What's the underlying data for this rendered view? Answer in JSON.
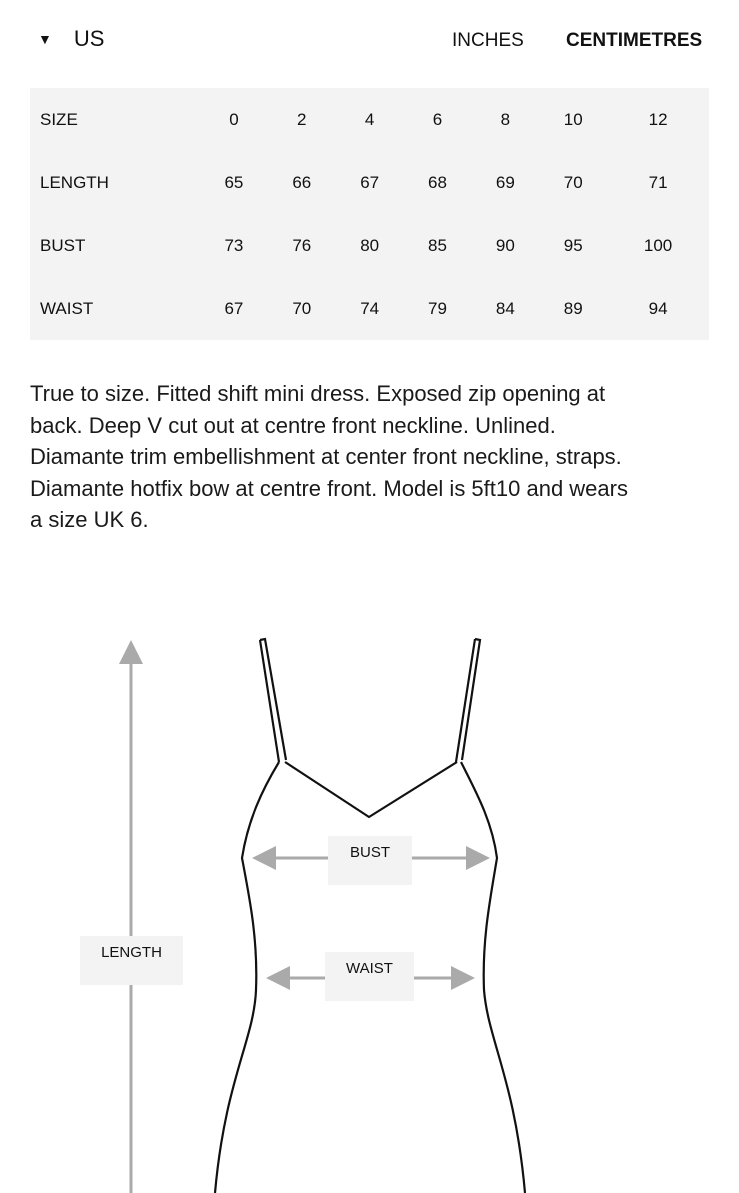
{
  "header": {
    "region": "US",
    "region_icon": "triangle-down-icon",
    "units": [
      "INCHES",
      "CENTIMETRES"
    ],
    "selected_unit": "CENTIMETRES"
  },
  "table": {
    "rows": [
      {
        "label": "SIZE",
        "values": [
          "0",
          "2",
          "4",
          "6",
          "8",
          "10",
          "12"
        ]
      },
      {
        "label": "LENGTH",
        "values": [
          "65",
          "66",
          "67",
          "68",
          "69",
          "70",
          "71"
        ]
      },
      {
        "label": "BUST",
        "values": [
          "73",
          "76",
          "80",
          "85",
          "90",
          "95",
          "100"
        ]
      },
      {
        "label": "WAIST",
        "values": [
          "67",
          "70",
          "74",
          "79",
          "84",
          "89",
          "94"
        ]
      }
    ]
  },
  "description": "True to size. Fitted shift mini dress. Exposed zip opening at back. Deep V cut out at centre front neckline. Unlined. Diamante trim embellishment at center front neckline, straps. Diamante hotfix bow at centre front. Model is 5ft10 and wears a size UK 6.",
  "diagram": {
    "bust": "BUST",
    "waist": "WAIST",
    "length": "LENGTH"
  }
}
